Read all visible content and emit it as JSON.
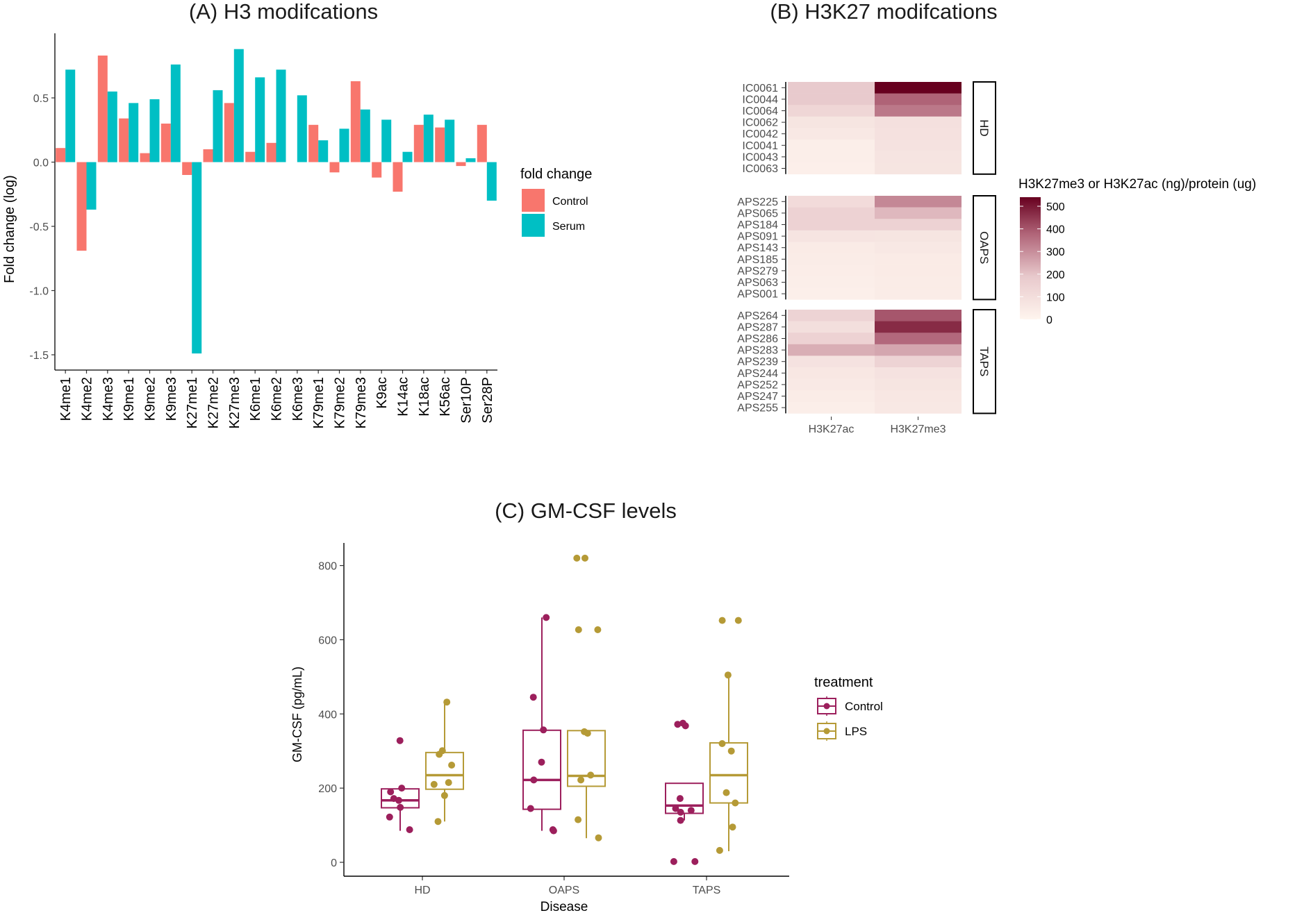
{
  "chart_data": [
    {
      "type": "bar",
      "title": "(A) H3 modifcations",
      "xlabel": "",
      "ylabel": "Fold change (log)",
      "ylim": [
        -1.65,
        1.0
      ],
      "yticks": [
        -1.5,
        -1.0,
        -0.5,
        0.0,
        0.5
      ],
      "ytick_labels": [
        "-1.5",
        "-1.0",
        "-0.5",
        "0.0",
        "0.5"
      ],
      "grid": false,
      "legend": {
        "title": "fold change",
        "placement": "right"
      },
      "categories": [
        "K4me1",
        "K4me2",
        "K4me3",
        "K9me1",
        "K9me2",
        "K9me3",
        "K27me1",
        "K27me2",
        "K27me3",
        "K6me1",
        "K6me2",
        "K6me3",
        "K79me1",
        "K79me2",
        "K79me3",
        "K9ac",
        "K14ac",
        "K18ac",
        "K56ac",
        "Ser10P",
        "Ser28P"
      ],
      "series": [
        {
          "name": "Control",
          "color": "#F8766D",
          "values": [
            0.11,
            -0.69,
            0.83,
            0.34,
            0.07,
            0.3,
            -0.1,
            0.1,
            0.46,
            0.08,
            0.15,
            0.0,
            0.29,
            -0.08,
            0.63,
            -0.12,
            -0.23,
            0.29,
            0.27,
            -0.03,
            0.29
          ]
        },
        {
          "name": "Serum",
          "color": "#00BFC4",
          "values": [
            0.72,
            -0.37,
            0.55,
            0.46,
            0.49,
            0.76,
            -1.49,
            0.56,
            0.88,
            0.66,
            0.72,
            0.52,
            0.17,
            0.26,
            0.41,
            0.33,
            0.08,
            0.37,
            0.33,
            0.03,
            -0.3
          ]
        }
      ]
    },
    {
      "type": "heatmap",
      "title": "(B) H3K27 modifcations",
      "columns": [
        "H3K27ac",
        "H3K27me3"
      ],
      "legend": {
        "title": "H3K27me3 or H3K27ac (ng)/protein (ug)",
        "placement": "right",
        "ticks": [
          0,
          100,
          200,
          300,
          400,
          500
        ],
        "tick_labels": [
          "0",
          "100",
          "200",
          "300",
          "400",
          "500"
        ],
        "range": [
          0,
          540
        ],
        "low_color": "#FFF5EE",
        "high_color": "#67001F"
      },
      "panels": [
        {
          "name": "HD",
          "rows": [
            "IC0061",
            "IC0044",
            "IC0064",
            "IC0062",
            "IC0042",
            "IC0041",
            "IC0043",
            "IC0063"
          ],
          "values": [
            [
              185,
              540
            ],
            [
              185,
              380
            ],
            [
              135,
              340
            ],
            [
              70,
              90
            ],
            [
              55,
              85
            ],
            [
              30,
              80
            ],
            [
              30,
              75
            ],
            [
              25,
              70
            ]
          ]
        },
        {
          "name": "OAPS",
          "rows": [
            "APS225",
            "APS065",
            "APS184",
            "APS091",
            "APS143",
            "APS185",
            "APS279",
            "APS063",
            "APS001"
          ],
          "values": [
            [
              110,
              310
            ],
            [
              150,
              220
            ],
            [
              150,
              150
            ],
            [
              75,
              70
            ],
            [
              45,
              55
            ],
            [
              40,
              45
            ],
            [
              35,
              45
            ],
            [
              30,
              40
            ],
            [
              25,
              40
            ]
          ]
        },
        {
          "name": "TAPS",
          "rows": [
            "APS264",
            "APS287",
            "APS286",
            "APS283",
            "APS239",
            "APS244",
            "APS252",
            "APS247",
            "APS255"
          ],
          "values": [
            [
              145,
              400
            ],
            [
              95,
              470
            ],
            [
              150,
              370
            ],
            [
              240,
              255
            ],
            [
              80,
              145
            ],
            [
              60,
              80
            ],
            [
              50,
              70
            ],
            [
              40,
              60
            ],
            [
              30,
              55
            ]
          ]
        }
      ]
    },
    {
      "type": "box",
      "title": "(C) GM-CSF levels",
      "xlabel": "Disease",
      "ylabel": "GM-CSF (pg/mL)",
      "ylim": [
        -30,
        860
      ],
      "yticks": [
        0,
        200,
        400,
        600,
        800
      ],
      "ytick_labels": [
        "0",
        "200",
        "400",
        "600",
        "800"
      ],
      "grid": false,
      "categories": [
        "HD",
        "OAPS",
        "TAPS"
      ],
      "legend": {
        "title": "treatment",
        "placement": "right"
      },
      "series": [
        {
          "name": "Control",
          "color": "#9C1F5C",
          "boxes": [
            {
              "min": 85,
              "q1": 147,
              "median": 167,
              "q3": 198,
              "max": 200
            },
            {
              "min": 85,
              "q1": 143,
              "median": 222,
              "q3": 356,
              "max": 660
            },
            {
              "min": 113,
              "q1": 132,
              "median": 153,
              "q3": 213,
              "max": 213
            }
          ],
          "points": [
            [
              328,
              200,
              190,
              172,
              167,
              148,
              122,
              88
            ],
            [
              660,
              445,
              357,
              270,
              222,
              145,
              88,
              85
            ],
            [
              375,
              372,
              368,
              172,
              145,
              140,
              135,
              113,
              2,
              2
            ]
          ]
        },
        {
          "name": "LPS",
          "color": "#B59A36",
          "boxes": [
            {
              "min": 110,
              "q1": 197,
              "median": 235,
              "q3": 296,
              "max": 435
            },
            {
              "min": 65,
              "q1": 205,
              "median": 233,
              "q3": 355,
              "max": 355
            },
            {
              "min": 30,
              "q1": 160,
              "median": 235,
              "q3": 322,
              "max": 505
            }
          ],
          "points": [
            [
              432,
              301,
              291,
              262,
              215,
              210,
              180,
              110
            ],
            [
              820,
              820,
              627,
              627,
              352,
              348,
              235,
              222,
              115,
              66
            ],
            [
              652,
              652,
              505,
              320,
              300,
              188,
              160,
              95,
              32
            ]
          ]
        }
      ]
    }
  ]
}
